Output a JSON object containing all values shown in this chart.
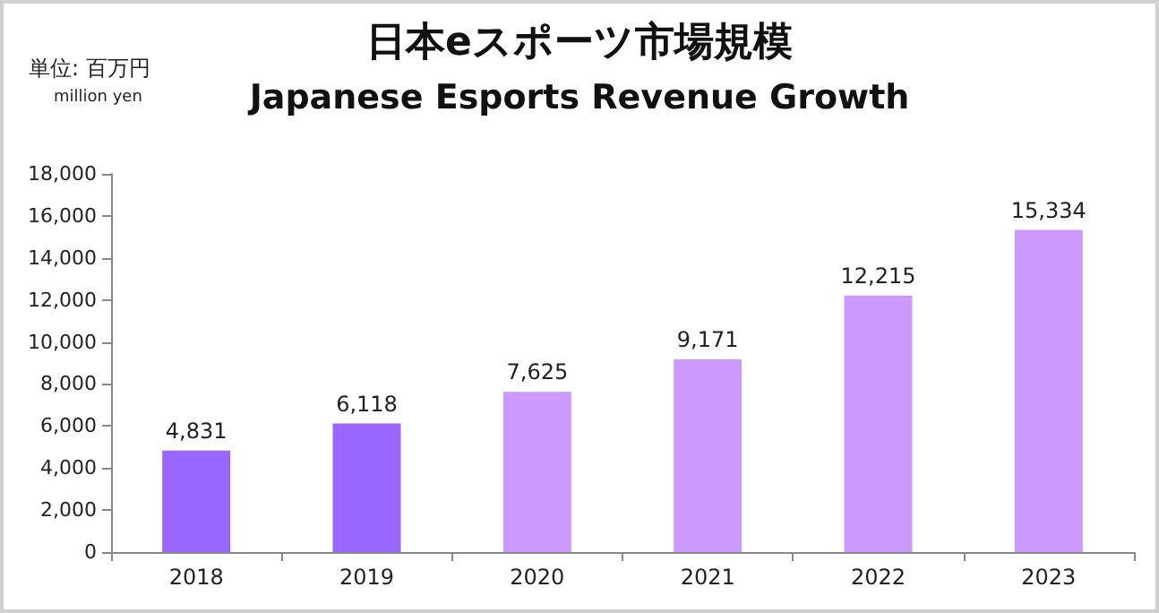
{
  "chart_data": {
    "type": "bar",
    "title": "日本eスポーツ市場規模",
    "subtitle": "Japanese Esports Revenue Growth",
    "ylabel": "単位: 百万円",
    "annotations": [
      "million yen"
    ],
    "categories": [
      "2018",
      "2019",
      "2020",
      "2021",
      "2022",
      "2023"
    ],
    "values": [
      4831,
      6118,
      7625,
      9171,
      12215,
      15334
    ],
    "colors": [
      "#9966ff",
      "#9966ff",
      "#cc99ff",
      "#cc99ff",
      "#cc99ff",
      "#cc99ff"
    ],
    "value_labels": [
      "4,831",
      "6,118",
      "7,625",
      "9,171",
      "12,215",
      "15,334"
    ],
    "ylim": [
      0,
      18000
    ],
    "yticks": [
      0,
      {
        "value": 2000,
        "label": "2,000"
      },
      {
        "value": 4000,
        "label": "4,000"
      },
      {
        "value": 6000,
        "label": "6,000"
      },
      {
        "value": 8000,
        "label": "8,000"
      },
      {
        "value": 10000,
        "label": "10,000"
      },
      {
        "value": 12000,
        "label": "12,000"
      },
      {
        "value": 14000,
        "label": "14,000"
      },
      {
        "value": 16000,
        "label": "16,000"
      },
      {
        "value": 18000,
        "label": "18,000"
      }
    ],
    "grid": false
  }
}
